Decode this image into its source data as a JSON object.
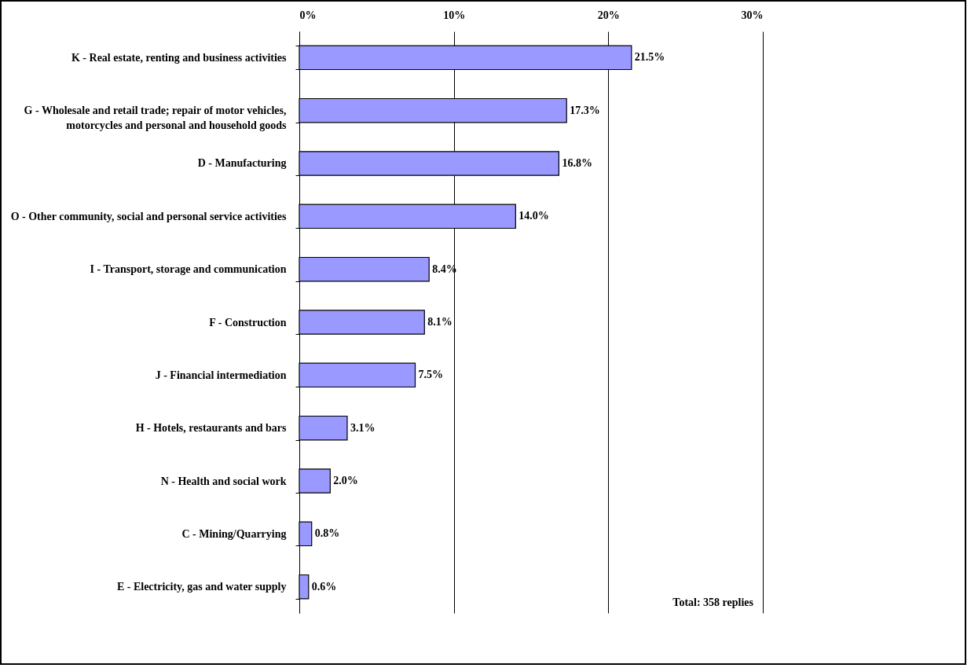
{
  "chart_data": {
    "type": "bar",
    "orientation": "horizontal",
    "categories": [
      "K - Real estate, renting and business activities",
      "G - Wholesale and retail trade; repair of motor vehicles, motorcycles and personal and household goods",
      "D - Manufacturing",
      "O - Other community, social and personal service activities",
      "I - Transport, storage and communication",
      "F - Construction",
      "J - Financial intermediation",
      "H - Hotels, restaurants and bars",
      "N - Health and social work",
      "C - Mining/Quarrying",
      "E - Electricity, gas and water supply"
    ],
    "values": [
      21.5,
      17.3,
      16.8,
      14.0,
      8.4,
      8.1,
      7.5,
      3.1,
      2.0,
      0.8,
      0.6
    ],
    "value_labels": [
      "21.5%",
      "17.3%",
      "16.8%",
      "14.0%",
      "8.4%",
      "8.1%",
      "7.5%",
      "3.1%",
      "2.0%",
      "0.8%",
      "0.6%"
    ],
    "color": "#9999ff",
    "xlim": [
      0,
      30
    ],
    "xticks": [
      {
        "value": 0,
        "label": "0%"
      },
      {
        "value": 10,
        "label": "10%"
      },
      {
        "value": 20,
        "label": "20%"
      },
      {
        "value": 30,
        "label": "30%"
      }
    ],
    "grid": "x",
    "annotations": [
      "Total:  358 replies"
    ]
  }
}
